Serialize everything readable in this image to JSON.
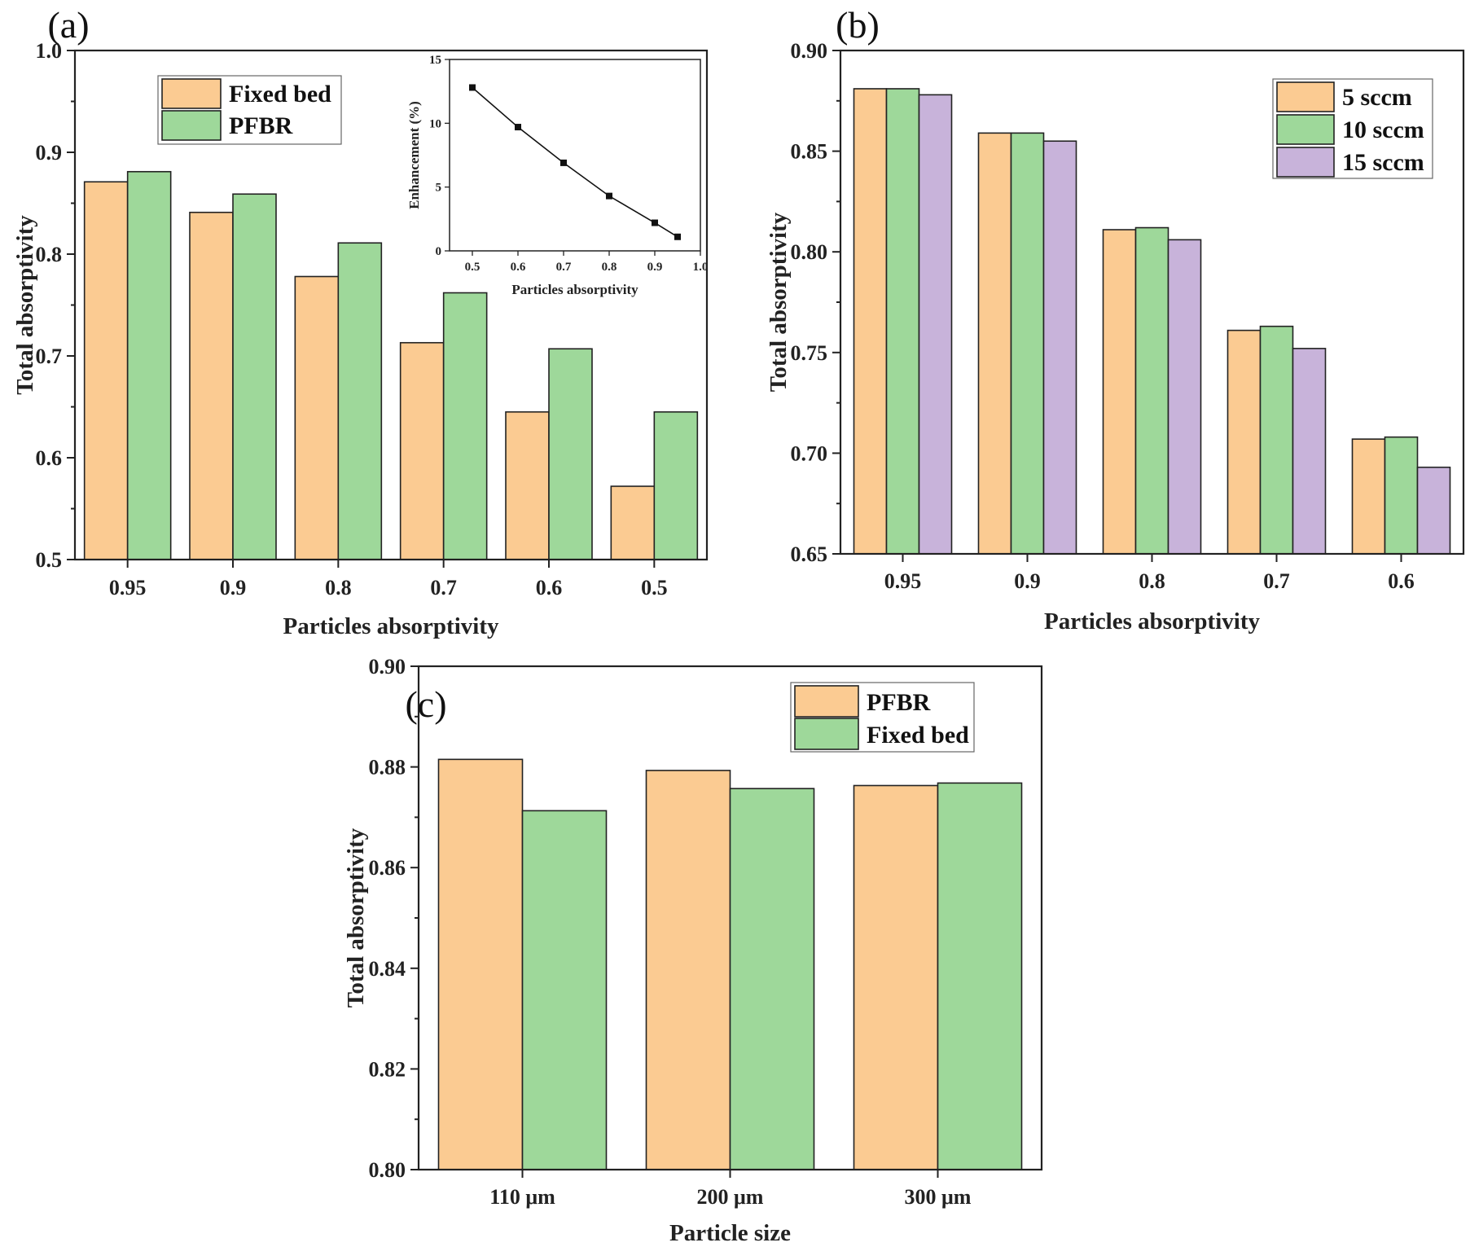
{
  "chart_data": [
    {
      "panel": "(a)",
      "type": "bar",
      "xlabel": "Particles absorptivity",
      "ylabel": "Total absorptivity",
      "categories": [
        "0.95",
        "0.9",
        "0.8",
        "0.7",
        "0.6",
        "0.5"
      ],
      "ylim": [
        0.5,
        1.0
      ],
      "yticks": [
        "0.5",
        "0.6",
        "0.7",
        "0.8",
        "0.9",
        "1.0"
      ],
      "legend_position": "top-left",
      "series": [
        {
          "name": "Fixed bed",
          "color": "#FBCB92",
          "values": [
            0.871,
            0.841,
            0.778,
            0.713,
            0.645,
            0.572
          ]
        },
        {
          "name": "PFBR",
          "color": "#9ED89A",
          "values": [
            0.881,
            0.859,
            0.811,
            0.762,
            0.707,
            0.645
          ]
        }
      ],
      "inset": {
        "type": "line",
        "xlabel": "Particles absorptivity",
        "ylabel": "Enhancement (%)",
        "xlim": [
          0.45,
          1.0
        ],
        "ylim": [
          0,
          15
        ],
        "xticks": [
          "0.5",
          "0.6",
          "0.7",
          "0.8",
          "0.9",
          "1.0"
        ],
        "yticks": [
          "0",
          "5",
          "10",
          "15"
        ],
        "x": [
          0.5,
          0.6,
          0.7,
          0.8,
          0.9,
          0.95
        ],
        "y": [
          12.8,
          9.7,
          6.9,
          4.3,
          2.2,
          1.1
        ]
      }
    },
    {
      "panel": "(b)",
      "type": "bar",
      "xlabel": "Particles absorptivity",
      "ylabel": "Total absorptivity",
      "categories": [
        "0.95",
        "0.9",
        "0.8",
        "0.7",
        "0.6"
      ],
      "ylim": [
        0.65,
        0.9
      ],
      "yticks": [
        "0.65",
        "0.70",
        "0.75",
        "0.80",
        "0.85",
        "0.90"
      ],
      "legend_position": "top-right",
      "series": [
        {
          "name": "5 sccm",
          "color": "#FBCB92",
          "values": [
            0.881,
            0.859,
            0.811,
            0.761,
            0.707
          ]
        },
        {
          "name": "10 sccm",
          "color": "#9ED89A",
          "values": [
            0.881,
            0.859,
            0.812,
            0.763,
            0.708
          ]
        },
        {
          "name": "15 sccm",
          "color": "#C8B3DA",
          "values": [
            0.878,
            0.855,
            0.806,
            0.752,
            0.693
          ]
        }
      ]
    },
    {
      "panel": "(c)",
      "type": "bar",
      "xlabel": "Particle size",
      "ylabel": "Total absorptivity",
      "categories": [
        "110 μm",
        "200 μm",
        "300 μm"
      ],
      "ylim": [
        0.8,
        0.9
      ],
      "yticks": [
        "0.80",
        "0.82",
        "0.84",
        "0.86",
        "0.88",
        "0.90"
      ],
      "legend_position": "top-right",
      "series": [
        {
          "name": "PFBR",
          "color": "#FBCB92",
          "values": [
            0.8815,
            0.8793,
            0.8763
          ]
        },
        {
          "name": "Fixed bed",
          "color": "#9ED89A",
          "values": [
            0.8713,
            0.8757,
            0.8768
          ]
        }
      ]
    }
  ]
}
